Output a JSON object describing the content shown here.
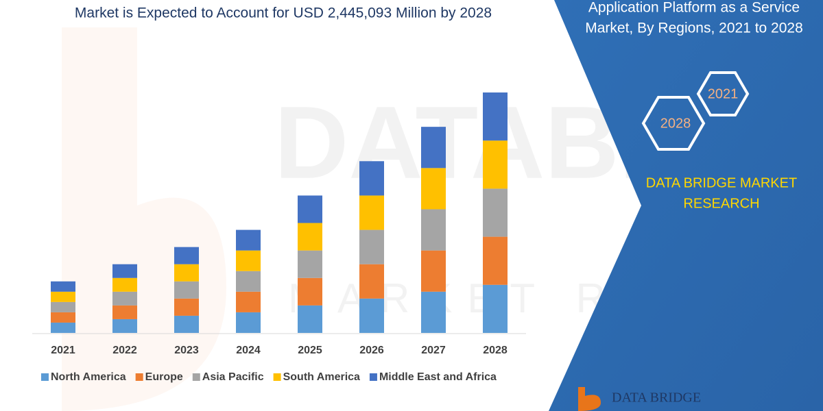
{
  "chart_data": {
    "type": "bar",
    "stacked": true,
    "title": "Market is Expected to Account for USD 2,445,093 Million by 2028",
    "categories": [
      "2021",
      "2022",
      "2023",
      "2024",
      "2025",
      "2026",
      "2027",
      "2028"
    ],
    "series": [
      {
        "name": "North America",
        "color": "#5b9bd5",
        "values": [
          15,
          20,
          25,
          30,
          40,
          50,
          60,
          70
        ]
      },
      {
        "name": "Europe",
        "color": "#ed7d31",
        "values": [
          15,
          20,
          25,
          30,
          40,
          50,
          60,
          70
        ]
      },
      {
        "name": "Asia Pacific",
        "color": "#a5a5a5",
        "values": [
          15,
          20,
          25,
          30,
          40,
          50,
          60,
          70
        ]
      },
      {
        "name": "South America",
        "color": "#ffc000",
        "values": [
          15,
          20,
          25,
          30,
          40,
          50,
          60,
          70
        ]
      },
      {
        "name": "Middle East and Africa",
        "color": "#4472c4",
        "values": [
          15,
          20,
          25,
          30,
          40,
          50,
          60,
          70
        ]
      }
    ],
    "legend": "bottom"
  },
  "panel": {
    "title_lines": [
      "Application Platform as a Service",
      "Market, By Regions, 2021 to 2028"
    ],
    "hexagons": [
      "2021",
      "2028"
    ],
    "brand_lines": [
      "DATA BRIDGE MARKET",
      "RESEARCH"
    ],
    "logo": "DATA BRIDGE"
  }
}
